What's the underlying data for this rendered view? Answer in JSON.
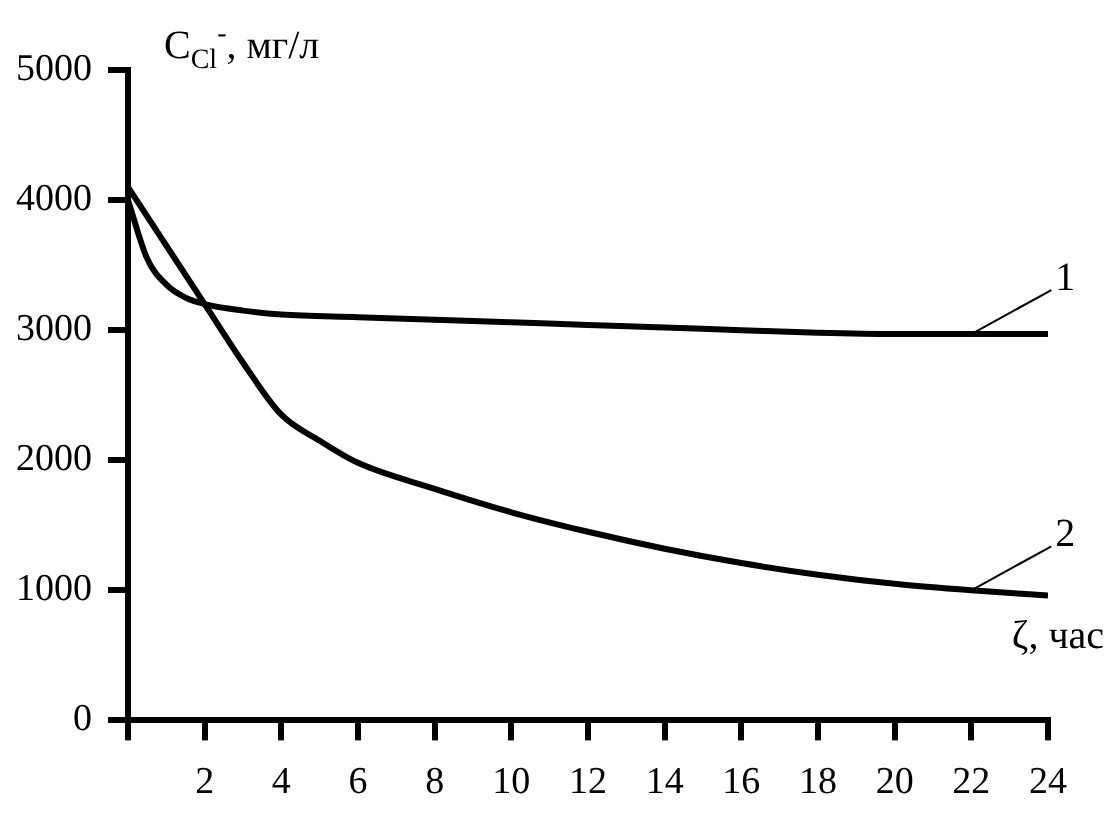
{
  "chart_data": {
    "type": "line",
    "ylabel": "C$_{Cl}$$^{-}$, мг/л",
    "xlabel": "ζ, час",
    "xlim": [
      0,
      24
    ],
    "xticks": [
      {
        "value": 0,
        "label": null
      },
      2,
      4,
      6,
      8,
      10,
      12,
      14,
      16,
      18,
      20,
      22,
      24
    ],
    "ylim": [
      0,
      5000
    ],
    "yticks": [
      0,
      1000,
      2000,
      3000,
      4000,
      5000
    ],
    "marker": "none",
    "line_style": "solid",
    "legend": false,
    "series": [
      {
        "name": "1",
        "color": "#000000",
        "x": [
          0,
          0.5,
          1,
          1.5,
          2,
          3,
          4,
          6,
          8,
          10,
          12,
          14,
          16,
          18,
          20,
          22,
          24
        ],
        "values": [
          4000,
          3550,
          3350,
          3250,
          3200,
          3150,
          3120,
          3100,
          3080,
          3060,
          3040,
          3020,
          3000,
          2980,
          2970,
          2970,
          2970
        ]
      },
      {
        "name": "2",
        "color": "#000000",
        "x": [
          0,
          1,
          2,
          3,
          4,
          5,
          6,
          8,
          10,
          12,
          14,
          16,
          18,
          20,
          22,
          24
        ],
        "values": [
          4100,
          3650,
          3200,
          2750,
          2350,
          2150,
          1980,
          1780,
          1600,
          1450,
          1320,
          1210,
          1120,
          1050,
          1000,
          960
        ]
      }
    ]
  }
}
